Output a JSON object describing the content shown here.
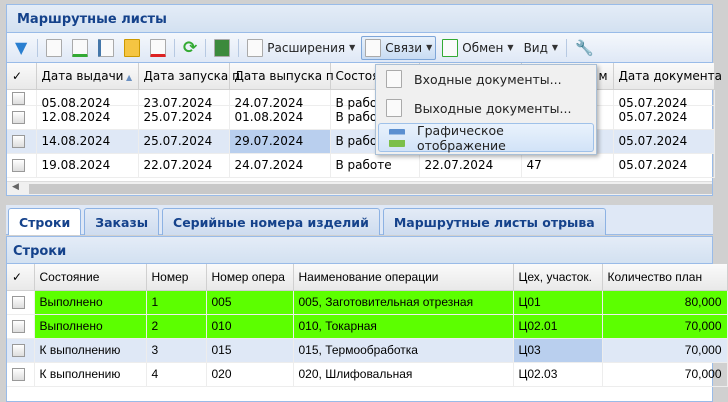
{
  "top_panel": {
    "title": "Маршрутные листы",
    "toolbar": {
      "extensions": "Расширения",
      "links": "Связи",
      "exchange": "Обмен",
      "view": "Вид"
    },
    "columns": [
      "Дата выдачи",
      "Дата запуска п",
      "Дата выпуска п",
      "Состоя",
      "",
      "м",
      "Дата документа"
    ],
    "rows": [
      [
        "05.08.2024",
        "23.07.2024",
        "24.07.2024",
        "В работе",
        "",
        "",
        "05.07.2024"
      ],
      [
        "12.08.2024",
        "25.07.2024",
        "01.08.2024",
        "В работе",
        "",
        "",
        "05.07.2024"
      ],
      [
        "14.08.2024",
        "25.07.2024",
        "29.07.2024",
        "В работе",
        "",
        "",
        "05.07.2024"
      ],
      [
        "19.08.2024",
        "22.07.2024",
        "24.07.2024",
        "В работе",
        "22.07.2024",
        "47",
        "05.07.2024"
      ]
    ]
  },
  "menu": {
    "items": [
      "Входные документы...",
      "Выходные документы...",
      "Графическое отображение"
    ]
  },
  "tabs": [
    "Строки",
    "Заказы",
    "Серийные номера изделий",
    "Маршрутные листы отрыва"
  ],
  "bottom_panel": {
    "title": "Строки",
    "columns": [
      "Состояние",
      "Номер",
      "Номер опера",
      "Наименование операции",
      "Цех, участок.",
      "Количество план"
    ],
    "rows": [
      [
        "Выполнено",
        "1",
        "005",
        "005, Заготовительная отрезная",
        "Ц01",
        "80,000"
      ],
      [
        "Выполнено",
        "2",
        "010",
        "010, Токарная",
        "Ц02.01",
        "70,000"
      ],
      [
        "К выполнению",
        "3",
        "015",
        "015, Термообработка",
        "Ц03",
        "70,000"
      ],
      [
        "К выполнению",
        "4",
        "020",
        "020, Шлифовальная",
        "Ц02.03",
        "70,000"
      ]
    ]
  },
  "colors": {
    "done": "#5cff00",
    "selected": "#dfe8f6",
    "accent": "#15428b"
  }
}
